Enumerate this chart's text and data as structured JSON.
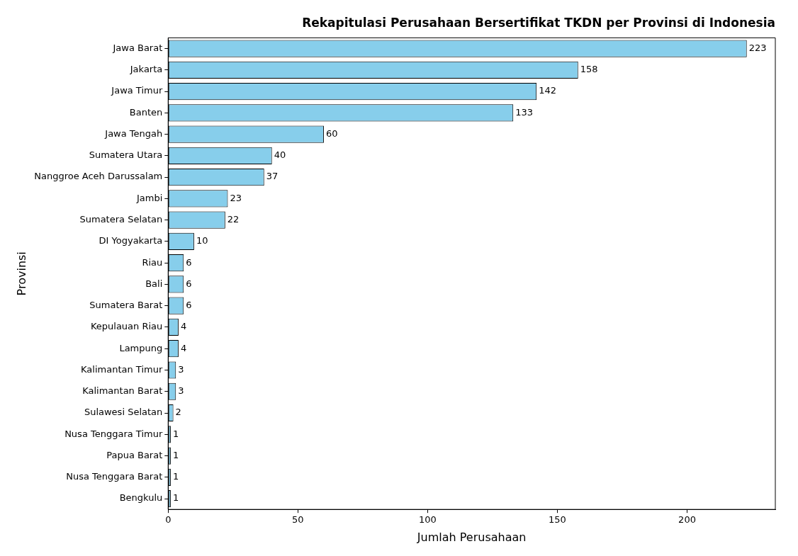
{
  "chart_data": {
    "type": "bar",
    "orientation": "horizontal",
    "title": "Rekapitulasi Perusahaan Bersertifikat TKDN per Provinsi di Indonesia",
    "xlabel": "Jumlah Perusahaan",
    "ylabel": "Provinsi",
    "categories": [
      "Jawa Barat",
      "Jakarta",
      "Jawa Timur",
      "Banten",
      "Jawa Tengah",
      "Sumatera Utara",
      "Nanggroe Aceh Darussalam",
      "Jambi",
      "Sumatera Selatan",
      "DI Yogyakarta",
      "Riau",
      "Bali",
      "Sumatera Barat",
      "Kepulauan Riau",
      "Lampung",
      "Kalimantan Timur",
      "Kalimantan Barat",
      "Sulawesi Selatan",
      "Nusa Tenggara Timur",
      "Papua Barat",
      "Nusa Tenggara Barat",
      "Bengkulu"
    ],
    "values": [
      223,
      158,
      142,
      133,
      60,
      40,
      37,
      23,
      22,
      10,
      6,
      6,
      6,
      4,
      4,
      3,
      3,
      2,
      1,
      1,
      1,
      1
    ],
    "color": "#87ceeb",
    "xlim": [
      0,
      234
    ],
    "xticks": [
      0,
      50,
      100,
      150,
      200
    ],
    "grid": false,
    "legend": false,
    "data_labels": true
  }
}
